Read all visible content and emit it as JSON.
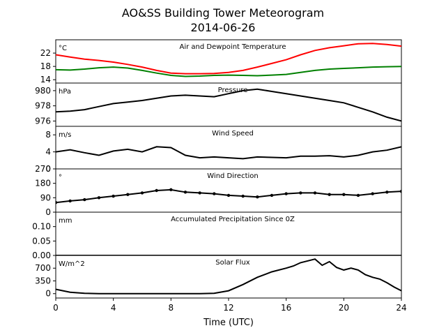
{
  "title_line1": "AO&SS Building Tower Meteorogram",
  "title_line2": "2014-06-26",
  "xlabel": "Time (UTC)",
  "x_ticks": [
    0,
    4,
    8,
    12,
    16,
    20,
    24
  ],
  "chart_data": [
    {
      "type": "line",
      "title": "Air and Dewpoint Temperature",
      "unit": "°C",
      "ylim": [
        13,
        26
      ],
      "yticks": [
        14,
        18,
        22
      ],
      "x": [
        0,
        1,
        2,
        3,
        4,
        5,
        6,
        7,
        8,
        9,
        10,
        11,
        12,
        13,
        14,
        15,
        16,
        17,
        18,
        19,
        20,
        21,
        22,
        23,
        24
      ],
      "series": [
        {
          "color": "#ff0000",
          "values": [
            21.5,
            20.8,
            20.2,
            19.8,
            19.3,
            18.6,
            17.8,
            16.8,
            16.0,
            15.8,
            15.8,
            15.9,
            16.2,
            16.8,
            17.8,
            18.9,
            20.0,
            21.5,
            22.8,
            23.6,
            24.2,
            24.8,
            24.9,
            24.6,
            24.1
          ]
        },
        {
          "color": "#008000",
          "values": [
            17.0,
            16.9,
            17.2,
            17.6,
            17.8,
            17.5,
            16.8,
            16.0,
            15.3,
            15.0,
            15.1,
            15.3,
            15.4,
            15.3,
            15.2,
            15.4,
            15.6,
            16.2,
            16.8,
            17.2,
            17.4,
            17.6,
            17.8,
            17.9,
            18.0
          ]
        }
      ]
    },
    {
      "type": "line",
      "title": "Pressure",
      "unit": "hPa",
      "ylim": [
        975.3,
        981.0
      ],
      "yticks": [
        976,
        978,
        980
      ],
      "x": [
        0,
        1,
        2,
        3,
        4,
        5,
        6,
        7,
        8,
        9,
        10,
        11,
        12,
        13,
        14,
        15,
        16,
        17,
        18,
        19,
        20,
        21,
        22,
        23,
        24
      ],
      "series": [
        {
          "color": "#000000",
          "values": [
            977.2,
            977.3,
            977.5,
            977.9,
            978.3,
            978.5,
            978.7,
            979.0,
            979.3,
            979.4,
            979.3,
            979.2,
            979.6,
            980.0,
            980.2,
            979.9,
            979.6,
            979.3,
            979.0,
            978.7,
            978.4,
            977.8,
            977.2,
            976.5,
            976.0
          ]
        }
      ]
    },
    {
      "type": "line",
      "title": "Wind Speed",
      "unit": "m/s",
      "ylim": [
        0,
        10
      ],
      "yticks": [
        0,
        4,
        8
      ],
      "x": [
        0,
        1,
        2,
        3,
        4,
        5,
        6,
        7,
        8,
        9,
        10,
        11,
        12,
        13,
        14,
        15,
        16,
        17,
        18,
        19,
        20,
        21,
        22,
        23,
        24
      ],
      "series": [
        {
          "color": "#000000",
          "values": [
            4.0,
            4.5,
            3.8,
            3.2,
            4.2,
            4.6,
            4.0,
            5.2,
            5.0,
            3.2,
            2.6,
            2.8,
            2.6,
            2.4,
            2.8,
            2.7,
            2.6,
            3.0,
            3.0,
            3.1,
            2.8,
            3.2,
            4.0,
            4.4,
            5.2
          ]
        }
      ]
    },
    {
      "type": "scatter",
      "title": "Wind Direction",
      "unit": "°",
      "ylim": [
        0,
        270
      ],
      "yticks": [
        0,
        90,
        180,
        270
      ],
      "x": [
        0,
        1,
        2,
        3,
        4,
        5,
        6,
        7,
        8,
        9,
        10,
        11,
        12,
        13,
        14,
        15,
        16,
        17,
        18,
        19,
        20,
        21,
        22,
        23,
        24
      ],
      "series": [
        {
          "color": "#000000",
          "values": [
            60,
            70,
            78,
            90,
            100,
            110,
            120,
            135,
            140,
            125,
            120,
            115,
            105,
            100,
            95,
            105,
            115,
            120,
            120,
            110,
            110,
            105,
            115,
            125,
            130
          ]
        }
      ]
    },
    {
      "type": "line",
      "title": "Accumulated Precipitation Since 0Z",
      "unit": "mm",
      "ylim": [
        0,
        0.15
      ],
      "yticks": [
        0.0,
        0.05,
        0.1
      ],
      "ytick_labels": [
        "0.00",
        "0.05",
        "0.10"
      ],
      "x": [
        0,
        24
      ],
      "series": [
        {
          "color": "#000000",
          "values": [
            0,
            0
          ]
        }
      ]
    },
    {
      "type": "line",
      "title": "Solar Flux",
      "unit": "W/m^2",
      "ylim": [
        -120,
        1050
      ],
      "yticks": [
        0,
        350,
        700
      ],
      "x": [
        0,
        0.5,
        1,
        2,
        3,
        4,
        5,
        6,
        7,
        8,
        9,
        10,
        11,
        12,
        13,
        14,
        15,
        16,
        16.5,
        17,
        17.5,
        18,
        18.5,
        19,
        19.5,
        20,
        20.5,
        21,
        21.5,
        22,
        22.5,
        23,
        23.5,
        24
      ],
      "series": [
        {
          "color": "#000000",
          "values": [
            120,
            80,
            40,
            10,
            0,
            0,
            0,
            0,
            0,
            0,
            0,
            0,
            10,
            80,
            250,
            450,
            600,
            700,
            760,
            850,
            900,
            950,
            780,
            880,
            720,
            650,
            700,
            650,
            520,
            450,
            400,
            300,
            180,
            80
          ]
        }
      ]
    }
  ]
}
